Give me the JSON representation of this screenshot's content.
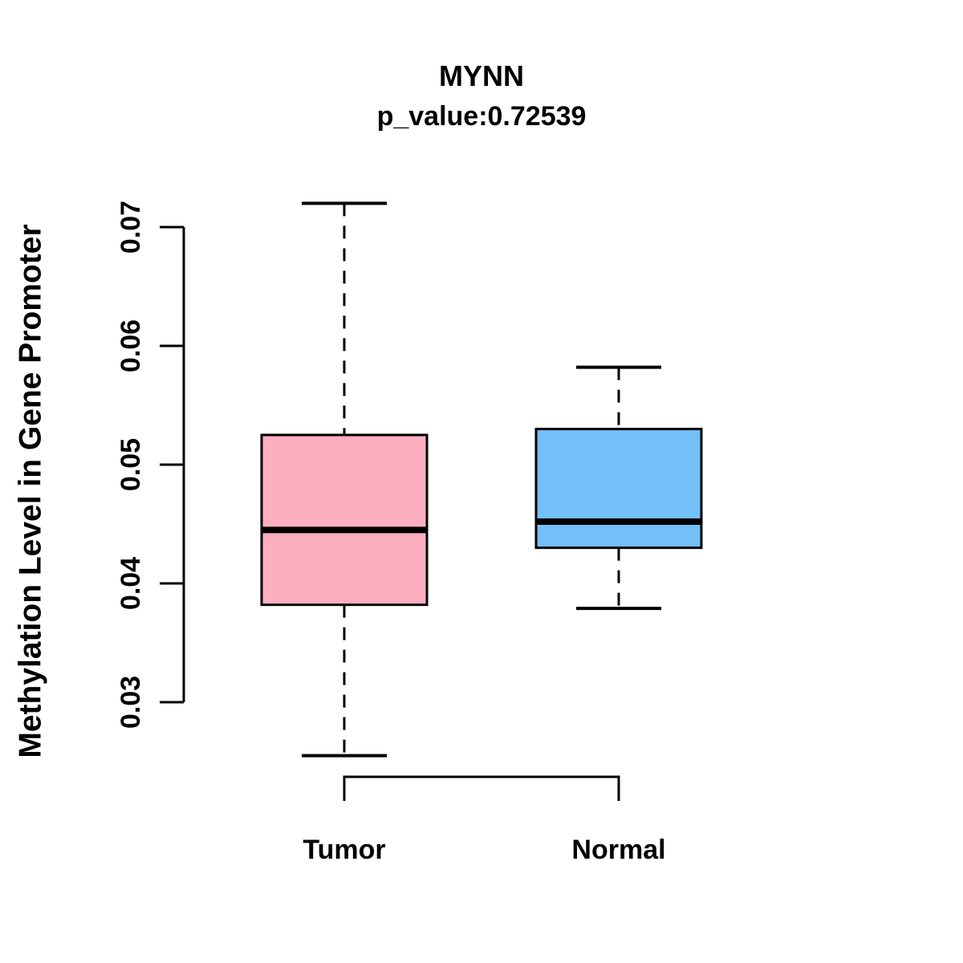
{
  "chart_data": {
    "type": "boxplot",
    "title": "MYNN",
    "subtitle": "p_value:0.72539",
    "ylabel": "Methylation Level in Gene Promoter",
    "xlabel": "",
    "ylim": [
      0.03,
      0.072
    ],
    "ytick_values": [
      0.03,
      0.04,
      0.05,
      0.06,
      0.07
    ],
    "ytick_labels": [
      "0.03",
      "0.04",
      "0.05",
      "0.06",
      "0.07"
    ],
    "grid": false,
    "legend": "none",
    "groups": [
      {
        "label": "Tumor",
        "color": "#FCAFC1",
        "lower_whisker": 0.0255,
        "q1": 0.0382,
        "median": 0.0445,
        "q3": 0.0525,
        "upper_whisker": 0.072
      },
      {
        "label": "Normal",
        "color": "#73BFF8",
        "lower_whisker": 0.0379,
        "q1": 0.043,
        "median": 0.0452,
        "q3": 0.053,
        "upper_whisker": 0.0582
      }
    ],
    "colors": {
      "axis": "#000000",
      "box_border": "#000000",
      "median_line": "#000000",
      "text": "#000000",
      "background": "#ffffff"
    }
  }
}
